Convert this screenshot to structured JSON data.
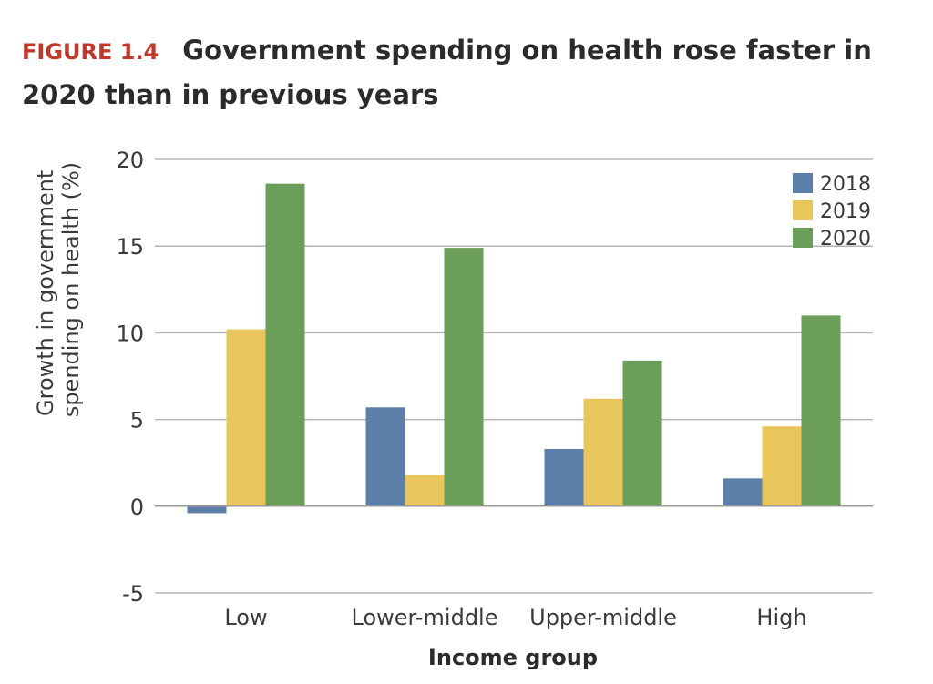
{
  "figure": {
    "label": "FIGURE 1.4",
    "title": "Government spending on health rose faster in 2020 than in previous years"
  },
  "chart_data": {
    "type": "bar",
    "title": "Government spending on health rose faster in 2020 than in previous years",
    "xlabel": "Income group",
    "ylabel_lines": [
      "Growth in government",
      "spending on health (%)"
    ],
    "categories": [
      "Low",
      "Lower-middle",
      "Upper-middle",
      "High"
    ],
    "series": [
      {
        "name": "2018",
        "color": "#5b7fa9",
        "values": [
          -0.4,
          5.7,
          3.3,
          1.6
        ]
      },
      {
        "name": "2019",
        "color": "#e9c65b",
        "values": [
          10.2,
          1.8,
          6.2,
          4.6
        ]
      },
      {
        "name": "2020",
        "color": "#6b9f59",
        "values": [
          18.6,
          14.9,
          8.4,
          11.0
        ]
      }
    ],
    "ylim": [
      -5,
      20
    ],
    "yticks": [
      -5,
      0,
      5,
      10,
      15,
      20
    ],
    "grid": true,
    "legend_position": "top-right"
  }
}
